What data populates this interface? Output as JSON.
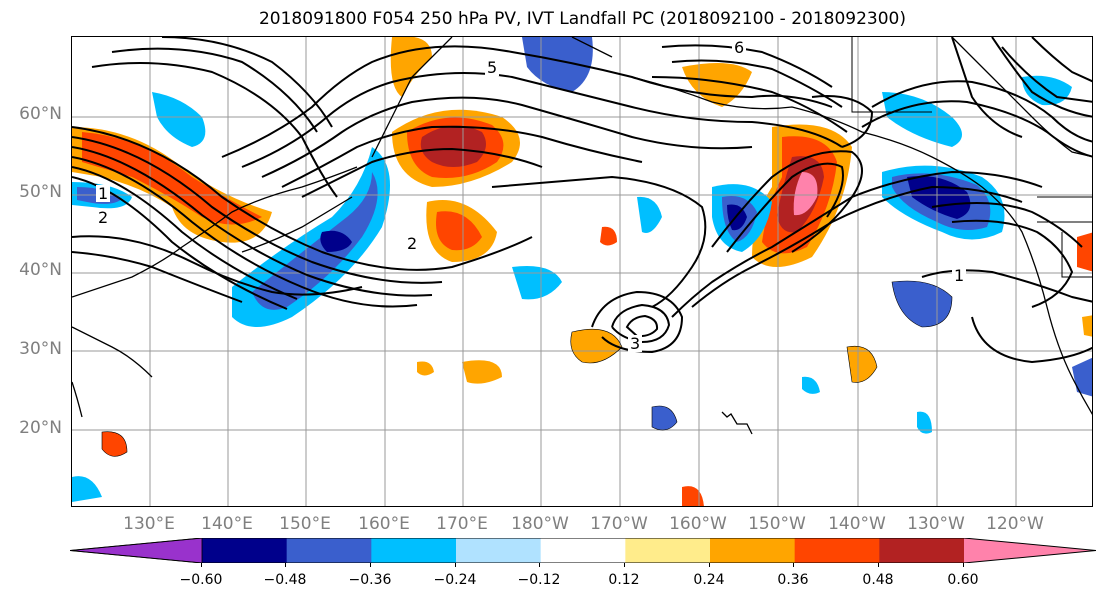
{
  "title": "2018091800 F054 250 hPa PV, IVT Landfall PC (2018092100 - 2018092300)",
  "lat_labels": [
    "60°N",
    "50°N",
    "40°N",
    "30°N",
    "20°N"
  ],
  "lon_labels": [
    "130°E",
    "140°E",
    "150°E",
    "160°E",
    "170°E",
    "180°W",
    "170°W",
    "160°W",
    "150°W",
    "140°W",
    "130°W",
    "120°W"
  ],
  "contour_labels": [
    "1",
    "2",
    "5",
    "6",
    "3",
    "2",
    "1"
  ],
  "colorbar": {
    "colors": [
      "#9932cc",
      "#00008b",
      "#3a5fcd",
      "#00bfff",
      "#b0e2ff",
      "#ffffff",
      "#ffec8b",
      "#ffa500",
      "#ff4500",
      "#b22222",
      "#ff82ab"
    ],
    "tick_labels": [
      "−0.60",
      "−0.48",
      "−0.36",
      "−0.24",
      "−0.12",
      "0.12",
      "0.24",
      "0.36",
      "0.48",
      "0.60"
    ]
  }
}
